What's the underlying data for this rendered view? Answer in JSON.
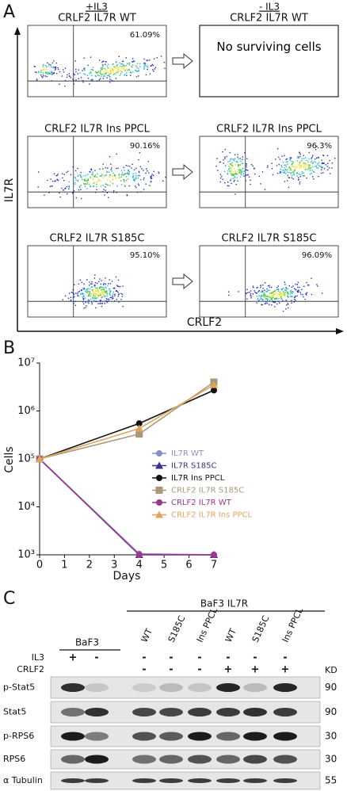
{
  "panel_a": {
    "label": "A",
    "conditions": [
      "+IL3",
      "- IL3"
    ],
    "y_axis_label": "IL7R",
    "x_axis_label": "CRLF2",
    "rows": [
      {
        "with_il3": {
          "title": "CRLF2 IL7R WT",
          "percent": "61.09%"
        },
        "without_il3": {
          "title": "CRLF2 IL7R WT",
          "note": "No surviving cells"
        }
      },
      {
        "with_il3": {
          "title": "CRLF2 IL7R Ins PPCL",
          "percent": "90.16%"
        },
        "without_il3": {
          "title": "CRLF2 IL7R Ins PPCL",
          "percent": "96.3%"
        }
      },
      {
        "with_il3": {
          "title": "CRLF2 IL7R S185C",
          "percent": "95.10%"
        },
        "without_il3": {
          "title": "CRLF2 IL7R S185C",
          "percent": "96.09%"
        }
      }
    ]
  },
  "chart_data": {
    "type": "line",
    "panel_label": "B",
    "x_label": "Days",
    "y_label": "Cells",
    "yscale": "log",
    "x": [
      0,
      4,
      7
    ],
    "xlim": [
      0,
      7
    ],
    "xticks": [
      0,
      1,
      2,
      3,
      4,
      5,
      6,
      7
    ],
    "ylim": [
      1000,
      10000000
    ],
    "yticks": [
      {
        "value": 1000,
        "label": "10³"
      },
      {
        "value": 10000,
        "label": "10⁴"
      },
      {
        "value": 100000,
        "label": "10⁵"
      },
      {
        "value": 1000000,
        "label": "10⁶"
      },
      {
        "value": 10000000,
        "label": "10⁷"
      }
    ],
    "series": [
      {
        "name": "IL7R  WT",
        "color": "#8b8fc4",
        "marker": "circle",
        "values": [
          100000,
          1050,
          1000
        ]
      },
      {
        "name": "IL7R S185C",
        "color": "#3a3282",
        "marker": "triangle",
        "values": [
          100000,
          1000,
          1000
        ]
      },
      {
        "name": "IL7R Ins PPCL",
        "color": "#111111",
        "marker": "circle",
        "values": [
          100000,
          550000,
          2700000
        ]
      },
      {
        "name": "CRLF2 IL7R  S185C",
        "color": "#a8997a",
        "marker": "square",
        "values": [
          100000,
          330000,
          4000000
        ]
      },
      {
        "name": "CRLF2 IL7R WT",
        "color": "#9a3a8c",
        "marker": "circle",
        "values": [
          100000,
          1000,
          1000
        ]
      },
      {
        "name": "CRLF2 IL7R  Ins PPCL",
        "color": "#e0a45c",
        "marker": "triangle",
        "values": [
          100000,
          430000,
          3500000
        ]
      }
    ]
  },
  "panel_c": {
    "label": "C",
    "group_labels": [
      "BaF3",
      "BaF3 IL7R"
    ],
    "lanes": [
      "WT",
      "S185C",
      "Ins PPCL",
      "WT",
      "S185C",
      "Ins PPCL"
    ],
    "treatments": [
      {
        "name": "IL3",
        "signs": [
          "+",
          "-",
          "-",
          "-",
          "-",
          "-",
          "-",
          "-"
        ]
      },
      {
        "name": "CRLF2",
        "signs": [
          null,
          null,
          "-",
          "-",
          "-",
          "+",
          "+",
          "+"
        ]
      }
    ],
    "kd_header": "KD",
    "blots": [
      {
        "name": "p-Stat5",
        "kd": 90
      },
      {
        "name": "Stat5",
        "kd": 90
      },
      {
        "name": "p-RPS6",
        "kd": 30
      },
      {
        "name": "RPS6",
        "kd": 30
      },
      {
        "name": "α Tubulin",
        "kd": 55
      }
    ]
  }
}
